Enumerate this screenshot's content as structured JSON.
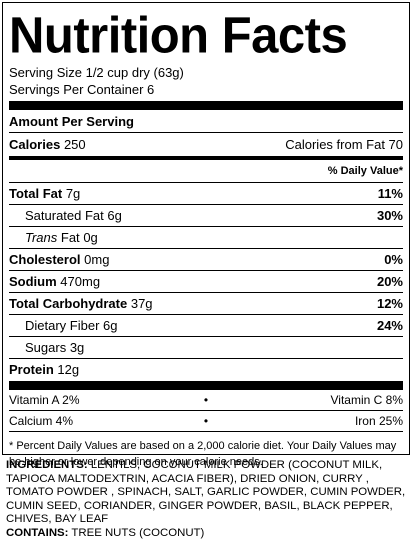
{
  "title": "Nutrition Facts",
  "serving_size": "Serving Size 1/2 cup dry (63g)",
  "servings_per_container": "Servings Per Container 6",
  "amount_per_serving": "Amount Per Serving",
  "calories_label": "Calories",
  "calories_value": "250",
  "calories_from_fat": "Calories from Fat 70",
  "daily_value_header": "% Daily Value*",
  "nutrients": {
    "total_fat": {
      "label": "Total Fat",
      "amount": "7g",
      "dv": "11%"
    },
    "saturated_fat": {
      "label": "Saturated Fat",
      "amount": "6g",
      "dv": "30%"
    },
    "trans_fat": {
      "label": "Trans",
      "label_suffix": "Fat",
      "amount": "0g"
    },
    "cholesterol": {
      "label": "Cholesterol",
      "amount": "0mg",
      "dv": "0%"
    },
    "sodium": {
      "label": "Sodium",
      "amount": "470mg",
      "dv": "20%"
    },
    "total_carbohydrate": {
      "label": "Total Carbohydrate",
      "amount": "37g",
      "dv": "12%"
    },
    "dietary_fiber": {
      "label": "Dietary Fiber",
      "amount": "6g",
      "dv": "24%"
    },
    "sugars": {
      "label": "Sugars",
      "amount": "3g"
    },
    "protein": {
      "label": "Protein",
      "amount": "12g"
    }
  },
  "vitamins": {
    "vitamin_a": "Vitamin A 2%",
    "vitamin_c": "Vitamin C 8%",
    "calcium": "Calcium 4%",
    "iron": "Iron 25%",
    "bullet": "•"
  },
  "footnote": "* Percent Daily Values are based on a 2,000 calorie diet. Your Daily Values may be higher or lower depending on your calorie needs.",
  "ingredients_label": "INGREDIENTS:",
  "ingredients_text": "LENTILS, COCONUT MILK POWDER (COCONUT MILK, TAPIOCA MALTODEXTRIN, ACACIA FIBER), DRIED ONION, CURRY , TOMATO POWDER , SPINACH, SALT, GARLIC POWDER, CUMIN POWDER, CUMIN SEED, CORIANDER, GINGER POWDER, BASIL, BLACK PEPPER, CHIVES, BAY LEAF",
  "contains_label": "CONTAINS:",
  "contains_text": "TREE NUTS (COCONUT)"
}
